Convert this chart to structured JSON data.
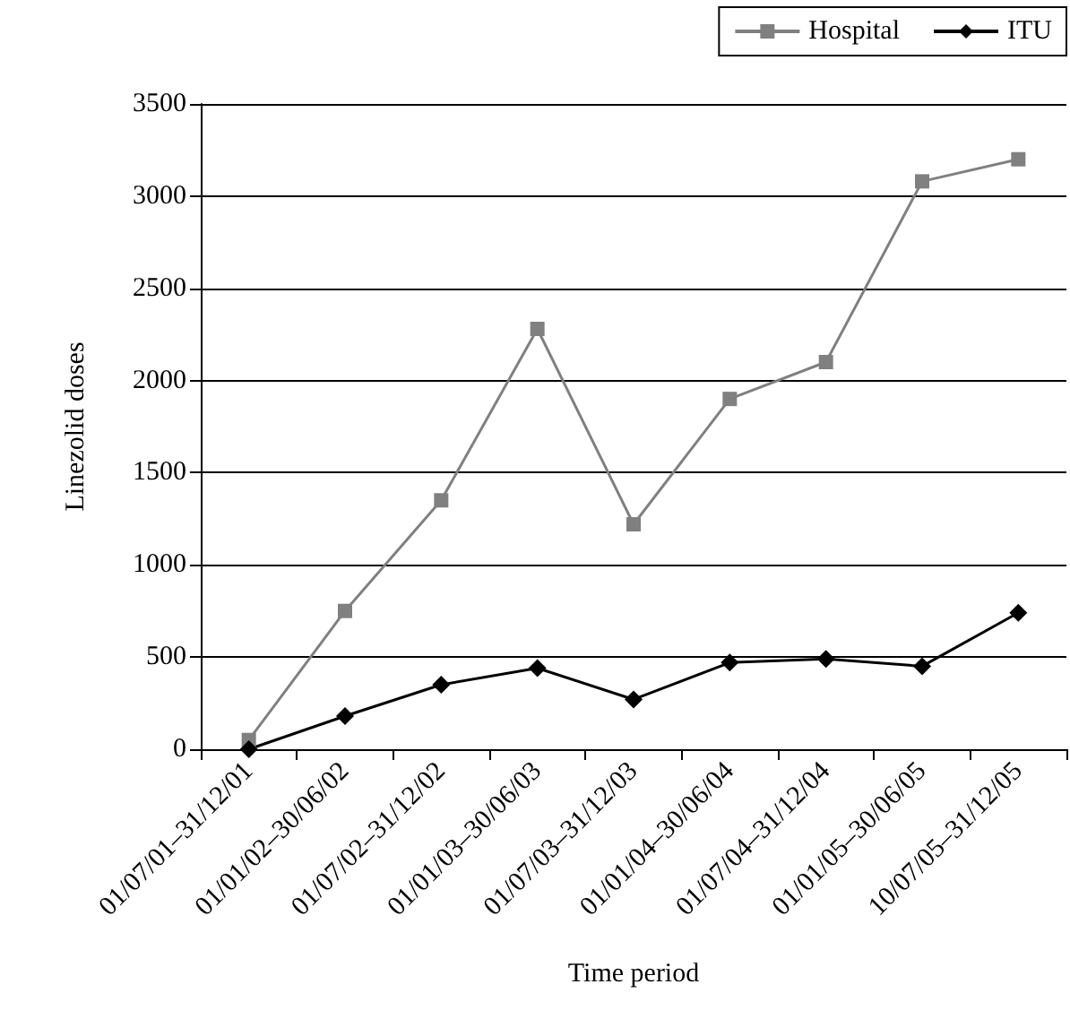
{
  "chart_data": {
    "type": "line",
    "xlabel": "Time period",
    "ylabel": "Linezolid doses",
    "categories": [
      "01/07/01–31/12/01",
      "01/01/02–30/06/02",
      "01/07/02–31/12/02",
      "01/01/03–30/06/03",
      "01/07/03–31/12/03",
      "01/01/04–30/06/04",
      "01/07/04–31/12/04",
      "01/01/05–30/06/05",
      "10/07/05–31/12/05"
    ],
    "series": [
      {
        "name": "Hospital",
        "color": "#808080",
        "marker": "square",
        "values": [
          50,
          750,
          1350,
          2280,
          1220,
          1900,
          2100,
          3080,
          3200
        ]
      },
      {
        "name": "ITU",
        "color": "#000000",
        "marker": "diamond",
        "values": [
          0,
          180,
          350,
          440,
          270,
          470,
          490,
          450,
          740
        ]
      }
    ],
    "ylim": [
      0,
      3500
    ],
    "yticks": [
      0,
      500,
      1000,
      1500,
      2000,
      2500,
      3000,
      3500
    ],
    "grid": "y",
    "legend": "top right",
    "line_style": "solid"
  }
}
